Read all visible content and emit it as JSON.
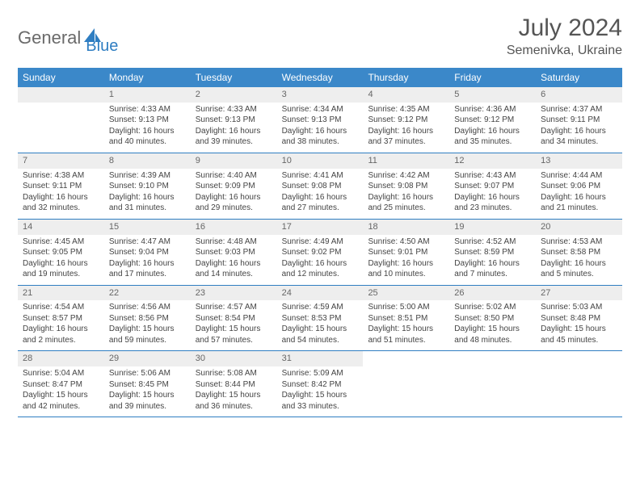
{
  "brand": {
    "part1": "General",
    "part2": "Blue"
  },
  "title": "July 2024",
  "location": "Semenivka, Ukraine",
  "colors": {
    "header_bg": "#3b88c9",
    "header_text": "#ffffff",
    "divider": "#2f7ec2",
    "daynum_bg": "#eeeeee",
    "body_text": "#444444",
    "brand_gray": "#6a6a6a",
    "brand_blue": "#2f7ec2",
    "page_bg": "#ffffff"
  },
  "typography": {
    "title_fontsize": 30,
    "location_fontsize": 16,
    "weekday_fontsize": 12,
    "daynum_fontsize": 11,
    "cell_fontsize": 10
  },
  "weekday_labels": [
    "Sunday",
    "Monday",
    "Tuesday",
    "Wednesday",
    "Thursday",
    "Friday",
    "Saturday"
  ],
  "weeks": [
    [
      null,
      {
        "n": "1",
        "sr": "Sunrise: 4:33 AM",
        "ss": "Sunset: 9:13 PM",
        "d1": "Daylight: 16 hours",
        "d2": "and 40 minutes."
      },
      {
        "n": "2",
        "sr": "Sunrise: 4:33 AM",
        "ss": "Sunset: 9:13 PM",
        "d1": "Daylight: 16 hours",
        "d2": "and 39 minutes."
      },
      {
        "n": "3",
        "sr": "Sunrise: 4:34 AM",
        "ss": "Sunset: 9:13 PM",
        "d1": "Daylight: 16 hours",
        "d2": "and 38 minutes."
      },
      {
        "n": "4",
        "sr": "Sunrise: 4:35 AM",
        "ss": "Sunset: 9:12 PM",
        "d1": "Daylight: 16 hours",
        "d2": "and 37 minutes."
      },
      {
        "n": "5",
        "sr": "Sunrise: 4:36 AM",
        "ss": "Sunset: 9:12 PM",
        "d1": "Daylight: 16 hours",
        "d2": "and 35 minutes."
      },
      {
        "n": "6",
        "sr": "Sunrise: 4:37 AM",
        "ss": "Sunset: 9:11 PM",
        "d1": "Daylight: 16 hours",
        "d2": "and 34 minutes."
      }
    ],
    [
      {
        "n": "7",
        "sr": "Sunrise: 4:38 AM",
        "ss": "Sunset: 9:11 PM",
        "d1": "Daylight: 16 hours",
        "d2": "and 32 minutes."
      },
      {
        "n": "8",
        "sr": "Sunrise: 4:39 AM",
        "ss": "Sunset: 9:10 PM",
        "d1": "Daylight: 16 hours",
        "d2": "and 31 minutes."
      },
      {
        "n": "9",
        "sr": "Sunrise: 4:40 AM",
        "ss": "Sunset: 9:09 PM",
        "d1": "Daylight: 16 hours",
        "d2": "and 29 minutes."
      },
      {
        "n": "10",
        "sr": "Sunrise: 4:41 AM",
        "ss": "Sunset: 9:08 PM",
        "d1": "Daylight: 16 hours",
        "d2": "and 27 minutes."
      },
      {
        "n": "11",
        "sr": "Sunrise: 4:42 AM",
        "ss": "Sunset: 9:08 PM",
        "d1": "Daylight: 16 hours",
        "d2": "and 25 minutes."
      },
      {
        "n": "12",
        "sr": "Sunrise: 4:43 AM",
        "ss": "Sunset: 9:07 PM",
        "d1": "Daylight: 16 hours",
        "d2": "and 23 minutes."
      },
      {
        "n": "13",
        "sr": "Sunrise: 4:44 AM",
        "ss": "Sunset: 9:06 PM",
        "d1": "Daylight: 16 hours",
        "d2": "and 21 minutes."
      }
    ],
    [
      {
        "n": "14",
        "sr": "Sunrise: 4:45 AM",
        "ss": "Sunset: 9:05 PM",
        "d1": "Daylight: 16 hours",
        "d2": "and 19 minutes."
      },
      {
        "n": "15",
        "sr": "Sunrise: 4:47 AM",
        "ss": "Sunset: 9:04 PM",
        "d1": "Daylight: 16 hours",
        "d2": "and 17 minutes."
      },
      {
        "n": "16",
        "sr": "Sunrise: 4:48 AM",
        "ss": "Sunset: 9:03 PM",
        "d1": "Daylight: 16 hours",
        "d2": "and 14 minutes."
      },
      {
        "n": "17",
        "sr": "Sunrise: 4:49 AM",
        "ss": "Sunset: 9:02 PM",
        "d1": "Daylight: 16 hours",
        "d2": "and 12 minutes."
      },
      {
        "n": "18",
        "sr": "Sunrise: 4:50 AM",
        "ss": "Sunset: 9:01 PM",
        "d1": "Daylight: 16 hours",
        "d2": "and 10 minutes."
      },
      {
        "n": "19",
        "sr": "Sunrise: 4:52 AM",
        "ss": "Sunset: 8:59 PM",
        "d1": "Daylight: 16 hours",
        "d2": "and 7 minutes."
      },
      {
        "n": "20",
        "sr": "Sunrise: 4:53 AM",
        "ss": "Sunset: 8:58 PM",
        "d1": "Daylight: 16 hours",
        "d2": "and 5 minutes."
      }
    ],
    [
      {
        "n": "21",
        "sr": "Sunrise: 4:54 AM",
        "ss": "Sunset: 8:57 PM",
        "d1": "Daylight: 16 hours",
        "d2": "and 2 minutes."
      },
      {
        "n": "22",
        "sr": "Sunrise: 4:56 AM",
        "ss": "Sunset: 8:56 PM",
        "d1": "Daylight: 15 hours",
        "d2": "and 59 minutes."
      },
      {
        "n": "23",
        "sr": "Sunrise: 4:57 AM",
        "ss": "Sunset: 8:54 PM",
        "d1": "Daylight: 15 hours",
        "d2": "and 57 minutes."
      },
      {
        "n": "24",
        "sr": "Sunrise: 4:59 AM",
        "ss": "Sunset: 8:53 PM",
        "d1": "Daylight: 15 hours",
        "d2": "and 54 minutes."
      },
      {
        "n": "25",
        "sr": "Sunrise: 5:00 AM",
        "ss": "Sunset: 8:51 PM",
        "d1": "Daylight: 15 hours",
        "d2": "and 51 minutes."
      },
      {
        "n": "26",
        "sr": "Sunrise: 5:02 AM",
        "ss": "Sunset: 8:50 PM",
        "d1": "Daylight: 15 hours",
        "d2": "and 48 minutes."
      },
      {
        "n": "27",
        "sr": "Sunrise: 5:03 AM",
        "ss": "Sunset: 8:48 PM",
        "d1": "Daylight: 15 hours",
        "d2": "and 45 minutes."
      }
    ],
    [
      {
        "n": "28",
        "sr": "Sunrise: 5:04 AM",
        "ss": "Sunset: 8:47 PM",
        "d1": "Daylight: 15 hours",
        "d2": "and 42 minutes."
      },
      {
        "n": "29",
        "sr": "Sunrise: 5:06 AM",
        "ss": "Sunset: 8:45 PM",
        "d1": "Daylight: 15 hours",
        "d2": "and 39 minutes."
      },
      {
        "n": "30",
        "sr": "Sunrise: 5:08 AM",
        "ss": "Sunset: 8:44 PM",
        "d1": "Daylight: 15 hours",
        "d2": "and 36 minutes."
      },
      {
        "n": "31",
        "sr": "Sunrise: 5:09 AM",
        "ss": "Sunset: 8:42 PM",
        "d1": "Daylight: 15 hours",
        "d2": "and 33 minutes."
      },
      null,
      null,
      null
    ]
  ]
}
